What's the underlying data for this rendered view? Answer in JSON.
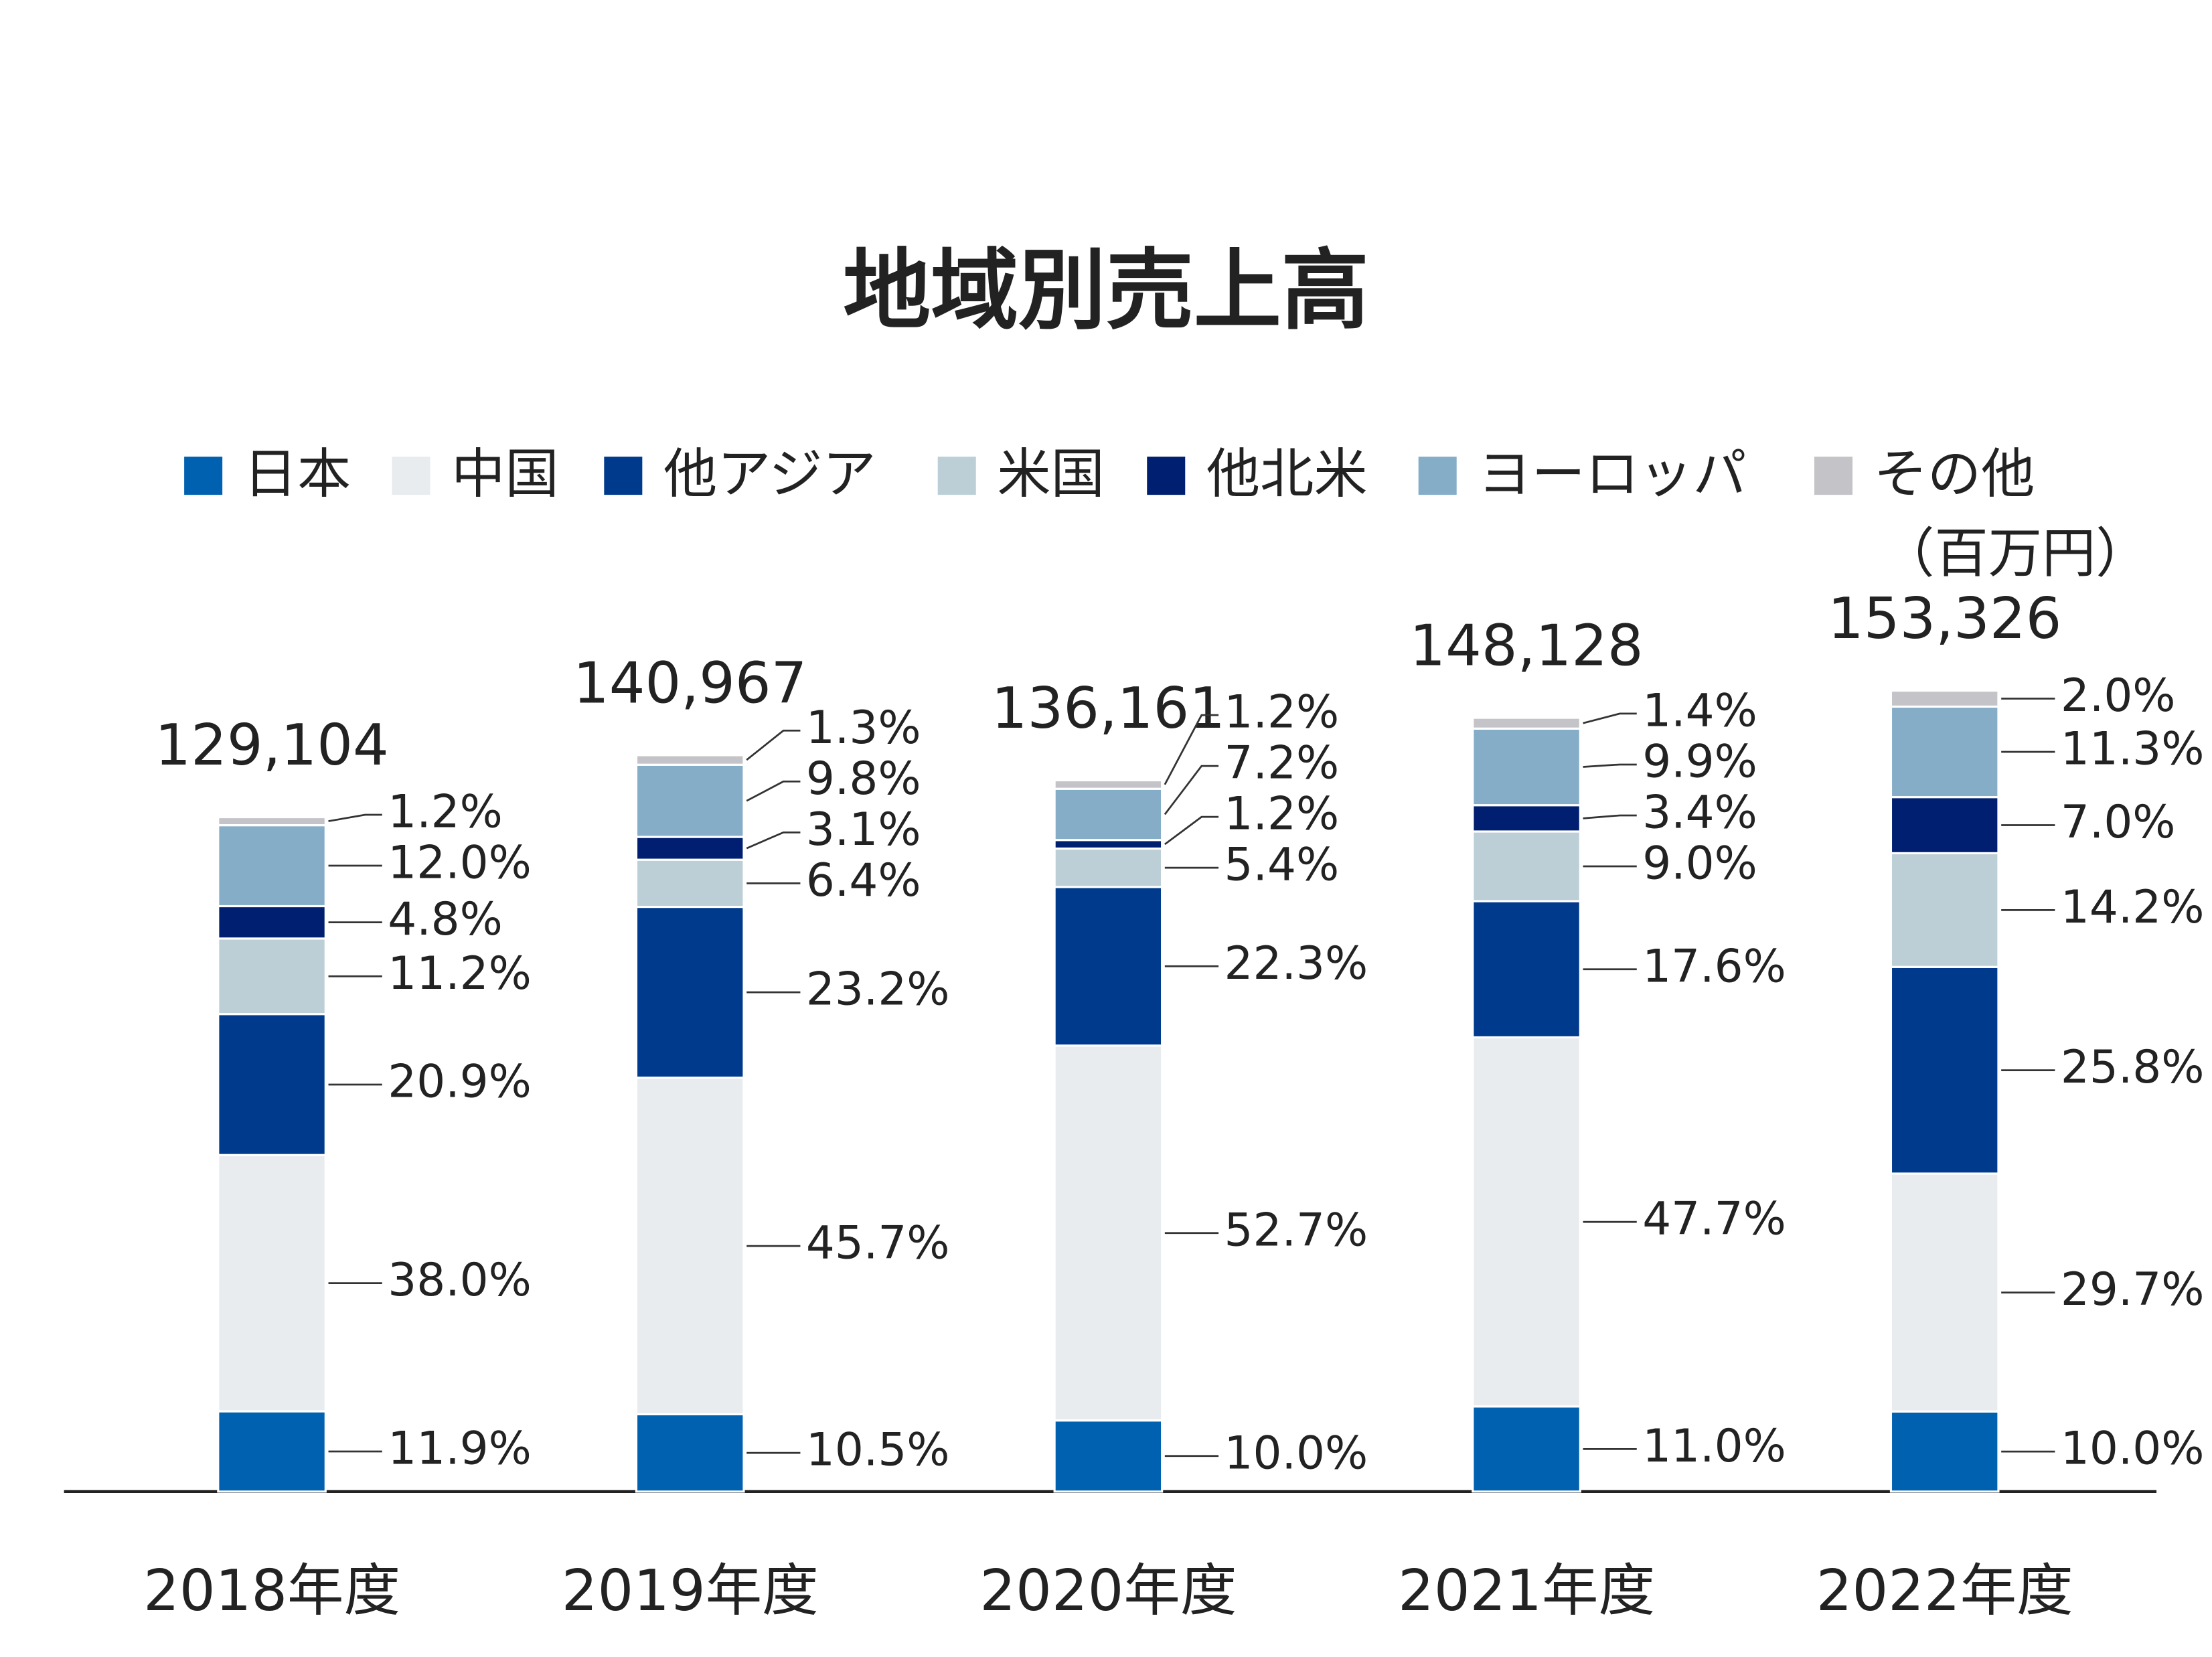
{
  "chart_data": {
    "type": "stacked_bar",
    "title": "地域別売上高",
    "unit_label": "（百万円）",
    "categories": [
      "2018年度",
      "2019年度",
      "2020年度",
      "2021年度",
      "2022年度"
    ],
    "totals": [
      {
        "value": 129104,
        "label": "129,104"
      },
      {
        "value": 140967,
        "label": "140,967"
      },
      {
        "value": 136161,
        "label": "136,161"
      },
      {
        "value": 148128,
        "label": "148,128"
      },
      {
        "value": 153326,
        "label": "153,326"
      }
    ],
    "series": [
      {
        "name": "日本",
        "color": "#0061b0",
        "values": [
          11.9,
          10.5,
          10.0,
          11.0,
          10.0
        ],
        "value_labels": [
          "11.9%",
          "10.5%",
          "10.0%",
          "11.0%",
          "10.0%"
        ]
      },
      {
        "name": "中国",
        "color": "#e8ecef",
        "values": [
          38.0,
          45.7,
          52.7,
          47.7,
          29.7
        ],
        "value_labels": [
          "38.0%",
          "45.7%",
          "52.7%",
          "47.7%",
          "29.7%"
        ]
      },
      {
        "name": "他アジア",
        "color": "#003a8c",
        "values": [
          20.9,
          23.2,
          22.3,
          17.6,
          25.8
        ],
        "value_labels": [
          "20.9%",
          "23.2%",
          "22.3%",
          "17.6%",
          "25.8%"
        ]
      },
      {
        "name": "米国",
        "color": "#bccfd6",
        "values": [
          11.2,
          6.4,
          5.4,
          9.0,
          14.2
        ],
        "value_labels": [
          "11.2%",
          "6.4%",
          "5.4%",
          "9.0%",
          "14.2%"
        ]
      },
      {
        "name": "他北米",
        "color": "#001f70",
        "values": [
          4.8,
          3.1,
          1.2,
          3.4,
          7.0
        ],
        "value_labels": [
          "4.8%",
          "3.1%",
          "1.2%",
          "3.4%",
          "7.0%"
        ]
      },
      {
        "name": "ヨーロッパ",
        "color": "#85adc8",
        "values": [
          12.0,
          9.8,
          7.2,
          9.9,
          11.3
        ],
        "value_labels": [
          "12.0%",
          "9.8%",
          "7.2%",
          "9.9%",
          "11.3%"
        ]
      },
      {
        "name": "その他",
        "color": "#c4c4c8",
        "values": [
          1.2,
          1.3,
          1.2,
          1.4,
          2.0
        ],
        "value_labels": [
          "1.2%",
          "1.3%",
          "1.2%",
          "1.4%",
          "2.0%"
        ]
      }
    ]
  }
}
